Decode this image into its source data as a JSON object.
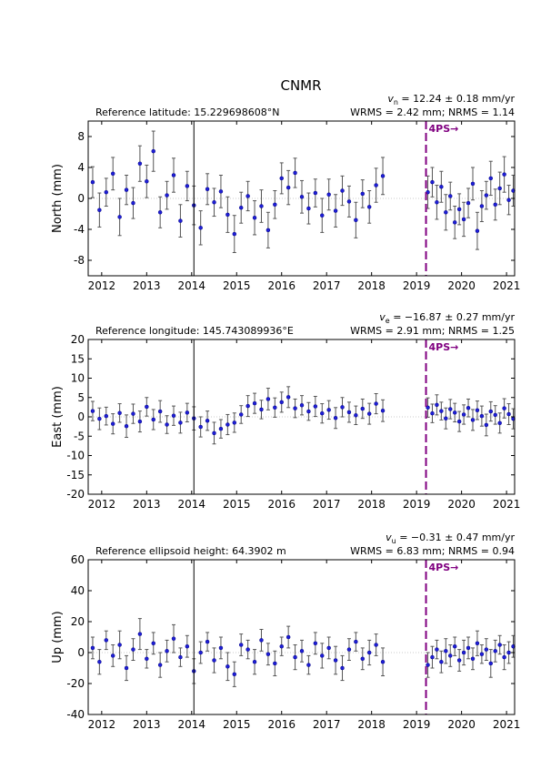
{
  "chart_data": [
    {
      "type": "errorbar",
      "title": "CNMR",
      "ylabel": "North (mm)",
      "reference_text": "Reference latitude: 15.229698608°N",
      "velocity_symbol": "v",
      "velocity_subscript": "n",
      "velocity_text": " = 12.24 ± 0.18 mm/yr",
      "stats_text": "WRMS = 2.42 mm; NRMS = 1.14",
      "xlim": [
        2011.7,
        2021.18
      ],
      "xticks": [
        2012,
        2013,
        2014,
        2015,
        2016,
        2017,
        2018,
        2019,
        2020,
        2021
      ],
      "ylim": [
        -10,
        10
      ],
      "yticks": [
        -8,
        -4,
        0,
        4,
        8
      ],
      "marker_color": "#1f1fd8",
      "errorbar_color": "#555555",
      "breaks": [
        {
          "x": 2014.05,
          "color": "#000000"
        }
      ],
      "offsets": [
        {
          "x": 2019.21,
          "label": "4PS→",
          "color": "#800080"
        }
      ],
      "x": [
        2011.8,
        2011.95,
        2012.1,
        2012.25,
        2012.4,
        2012.55,
        2012.7,
        2012.85,
        2013,
        2013.15,
        2013.3,
        2013.45,
        2013.6,
        2013.75,
        2013.9,
        2014.05,
        2014.2,
        2014.35,
        2014.5,
        2014.65,
        2014.8,
        2014.95,
        2015.1,
        2015.25,
        2015.4,
        2015.55,
        2015.7,
        2015.85,
        2016,
        2016.15,
        2016.3,
        2016.45,
        2016.6,
        2016.75,
        2016.9,
        2017.05,
        2017.2,
        2017.35,
        2017.5,
        2017.65,
        2017.8,
        2017.95,
        2018.1,
        2018.25,
        2019.25,
        2019.35,
        2019.45,
        2019.55,
        2019.65,
        2019.75,
        2019.85,
        2019.95,
        2020.05,
        2020.15,
        2020.25,
        2020.35,
        2020.45,
        2020.55,
        2020.65,
        2020.75,
        2020.85,
        2020.95,
        2021.05,
        2021.15
      ],
      "values": [
        2.1,
        -1.5,
        0.8,
        3.2,
        -2.4,
        1.1,
        -0.6,
        4.5,
        2.2,
        6.1,
        -1.8,
        0.4,
        3.0,
        -2.9,
        1.6,
        -0.9,
        -3.8,
        1.2,
        -0.5,
        0.9,
        -2.1,
        -4.6,
        -1.2,
        0.3,
        -2.5,
        -1.0,
        -4.1,
        -0.8,
        2.6,
        1.4,
        3.3,
        0.2,
        -1.3,
        0.7,
        -2.2,
        0.5,
        -1.6,
        1.0,
        -0.4,
        -2.8,
        0.6,
        -1.1,
        1.7,
        2.9,
        0.8,
        2.1,
        -0.5,
        1.5,
        -1.8,
        0.3,
        -3.1,
        -1.4,
        -2.7,
        -0.6,
        1.9,
        -4.2,
        -1.0,
        0.4,
        2.6,
        -0.8,
        1.3,
        3.1,
        -0.2,
        1.0
      ],
      "errors": [
        2.0,
        2.2,
        1.8,
        2.1,
        2.4,
        1.9,
        2.0,
        2.3,
        2.1,
        2.6,
        2.0,
        1.8,
        2.2,
        2.1,
        1.9,
        2.5,
        2.2,
        2.0,
        1.8,
        2.1,
        2.3,
        2.4,
        2.0,
        1.9,
        2.2,
        2.1,
        2.3,
        1.8,
        2.0,
        2.2,
        1.9,
        2.1,
        2.0,
        1.8,
        2.2,
        2.0,
        2.1,
        1.9,
        2.0,
        2.3,
        1.8,
        2.1,
        2.2,
        2.4,
        2.1,
        1.9,
        2.2,
        2.0,
        2.3,
        1.8,
        2.1,
        2.0,
        2.2,
        1.9,
        2.1,
        2.4,
        2.0,
        1.8,
        2.2,
        2.0,
        2.1,
        2.3,
        1.9,
        2.0
      ]
    },
    {
      "type": "errorbar",
      "ylabel": "East (mm)",
      "reference_text": "Reference longitude: 145.743089936°E",
      "velocity_symbol": "v",
      "velocity_subscript": "e",
      "velocity_text": " = −16.87 ± 0.27 mm/yr",
      "stats_text": "WRMS = 2.91 mm; NRMS = 1.25",
      "xlim": [
        2011.7,
        2021.18
      ],
      "xticks": [
        2012,
        2013,
        2014,
        2015,
        2016,
        2017,
        2018,
        2019,
        2020,
        2021
      ],
      "ylim": [
        -20,
        20
      ],
      "yticks": [
        -20,
        -15,
        -10,
        -5,
        0,
        5,
        10,
        15,
        20
      ],
      "marker_color": "#1f1fd8",
      "errorbar_color": "#555555",
      "breaks": [
        {
          "x": 2014.05,
          "color": "#000000"
        }
      ],
      "offsets": [
        {
          "x": 2019.21,
          "label": "4PS→",
          "color": "#800080"
        }
      ],
      "x": [
        2011.8,
        2011.95,
        2012.1,
        2012.25,
        2012.4,
        2012.55,
        2012.7,
        2012.85,
        2013,
        2013.15,
        2013.3,
        2013.45,
        2013.6,
        2013.75,
        2013.9,
        2014.05,
        2014.2,
        2014.35,
        2014.5,
        2014.65,
        2014.8,
        2014.95,
        2015.1,
        2015.25,
        2015.4,
        2015.55,
        2015.7,
        2015.85,
        2016,
        2016.15,
        2016.3,
        2016.45,
        2016.6,
        2016.75,
        2016.9,
        2017.05,
        2017.2,
        2017.35,
        2017.5,
        2017.65,
        2017.8,
        2017.95,
        2018.1,
        2018.25,
        2019.25,
        2019.35,
        2019.45,
        2019.55,
        2019.65,
        2019.75,
        2019.85,
        2019.95,
        2020.05,
        2020.15,
        2020.25,
        2020.35,
        2020.45,
        2020.55,
        2020.65,
        2020.75,
        2020.85,
        2020.95,
        2021.05,
        2021.15
      ],
      "values": [
        1.5,
        -0.5,
        0.2,
        -1.8,
        1.0,
        -2.4,
        0.8,
        -1.2,
        2.6,
        -0.7,
        1.4,
        -2.0,
        0.3,
        -1.5,
        1.1,
        -0.4,
        -2.6,
        -1.0,
        -4.2,
        -3.1,
        -2.0,
        -1.5,
        0.6,
        2.8,
        3.5,
        1.9,
        4.6,
        2.4,
        3.8,
        5.1,
        2.2,
        3.0,
        1.4,
        2.7,
        0.9,
        1.8,
        -0.3,
        2.5,
        1.2,
        0.4,
        2.1,
        0.8,
        3.4,
        1.6,
        2.4,
        0.9,
        3.1,
        1.5,
        -0.4,
        2.0,
        1.1,
        -1.2,
        0.6,
        2.3,
        -0.8,
        1.7,
        0.2,
        -2.1,
        1.4,
        0.5,
        -1.6,
        2.2,
        0.7,
        -0.5
      ],
      "errors": [
        2.5,
        2.8,
        2.3,
        2.6,
        2.4,
        2.9,
        2.5,
        2.7,
        2.4,
        2.6,
        2.8,
        2.3,
        2.5,
        2.7,
        2.4,
        3.0,
        2.6,
        2.5,
        2.8,
        2.4,
        2.6,
        2.5,
        2.3,
        2.7,
        2.6,
        2.4,
        2.8,
        2.5,
        2.6,
        2.7,
        2.4,
        2.5,
        2.3,
        2.6,
        2.5,
        2.4,
        2.7,
        2.5,
        2.6,
        2.4,
        2.5,
        2.7,
        2.6,
        2.8,
        2.5,
        2.4,
        2.6,
        2.3,
        2.7,
        2.5,
        2.4,
        2.6,
        2.5,
        2.3,
        2.7,
        2.4,
        2.6,
        2.8,
        2.5,
        2.4,
        2.6,
        2.5,
        2.7,
        2.6
      ]
    },
    {
      "type": "errorbar",
      "ylabel": "Up (mm)",
      "reference_text": "Reference ellipsoid height: 64.3902 m",
      "velocity_symbol": "v",
      "velocity_subscript": "u",
      "velocity_text": " = −0.31 ± 0.47 mm/yr",
      "stats_text": "WRMS = 6.83 mm; NRMS = 0.94",
      "xlim": [
        2011.7,
        2021.18
      ],
      "xticks": [
        2012,
        2013,
        2014,
        2015,
        2016,
        2017,
        2018,
        2019,
        2020,
        2021
      ],
      "ylim": [
        -40,
        60
      ],
      "yticks": [
        -40,
        -20,
        0,
        20,
        40,
        60
      ],
      "marker_color": "#1f1fd8",
      "errorbar_color": "#555555",
      "breaks": [
        {
          "x": 2014.05,
          "color": "#000000"
        }
      ],
      "offsets": [
        {
          "x": 2019.21,
          "label": "4PS→",
          "color": "#800080"
        }
      ],
      "x": [
        2011.8,
        2011.95,
        2012.1,
        2012.25,
        2012.4,
        2012.55,
        2012.7,
        2012.85,
        2013,
        2013.15,
        2013.3,
        2013.45,
        2013.6,
        2013.75,
        2013.9,
        2014.05,
        2014.2,
        2014.35,
        2014.5,
        2014.65,
        2014.8,
        2014.95,
        2015.1,
        2015.25,
        2015.4,
        2015.55,
        2015.7,
        2015.85,
        2016,
        2016.15,
        2016.3,
        2016.45,
        2016.6,
        2016.75,
        2016.9,
        2017.05,
        2017.2,
        2017.35,
        2017.5,
        2017.65,
        2017.8,
        2017.95,
        2018.1,
        2018.25,
        2019.25,
        2019.35,
        2019.45,
        2019.55,
        2019.65,
        2019.75,
        2019.85,
        2019.95,
        2020.05,
        2020.15,
        2020.25,
        2020.35,
        2020.45,
        2020.55,
        2020.65,
        2020.75,
        2020.85,
        2020.95,
        2021.05,
        2021.15
      ],
      "values": [
        3,
        -6,
        8,
        -2,
        5,
        -10,
        2,
        12,
        -4,
        6,
        -8,
        1,
        9,
        -3,
        4,
        -12,
        0,
        7,
        -5,
        3,
        -9,
        -14,
        5,
        2,
        -6,
        8,
        -1,
        -7,
        4,
        10,
        -3,
        1,
        -8,
        6,
        -2,
        3,
        -5,
        -10,
        2,
        7,
        -4,
        0,
        5,
        -6,
        -8,
        -3,
        2,
        -6,
        1,
        -2,
        4,
        -5,
        0,
        3,
        -4,
        6,
        -1,
        2,
        -7,
        1,
        5,
        -3,
        0,
        4
      ],
      "errors": [
        7,
        8,
        6,
        7,
        9,
        8,
        7,
        10,
        6,
        7,
        8,
        7,
        9,
        6,
        7,
        8,
        7,
        6,
        8,
        7,
        9,
        8,
        7,
        6,
        8,
        7,
        7,
        8,
        6,
        7,
        8,
        7,
        6,
        7,
        8,
        7,
        9,
        8,
        7,
        6,
        7,
        8,
        7,
        9,
        8,
        7,
        6,
        7,
        8,
        7,
        6,
        7,
        8,
        7,
        7,
        8,
        6,
        7,
        9,
        7,
        6,
        8,
        7,
        7
      ]
    }
  ]
}
